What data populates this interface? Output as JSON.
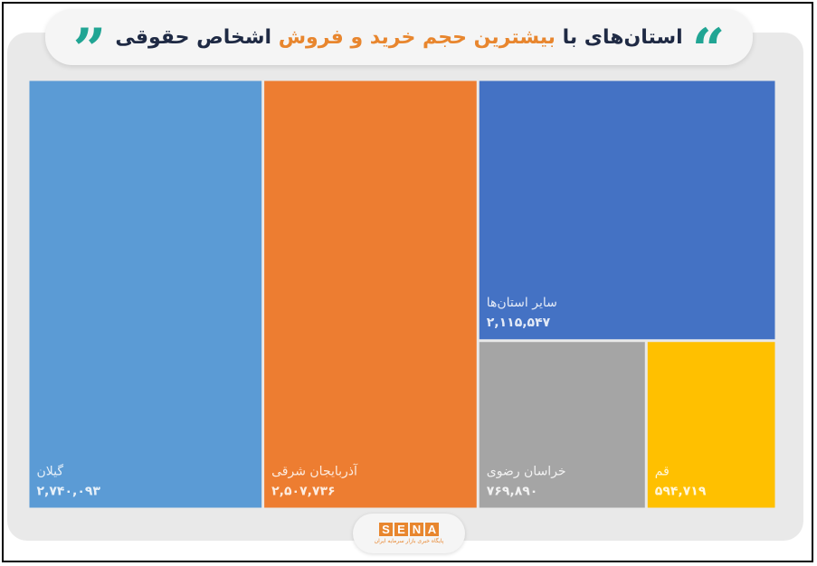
{
  "header": {
    "title_part1": "استان‌های با ",
    "title_highlight": "بیشترین حجم خرید و فروش",
    "title_part2": " اشخاص حقوقی",
    "quote_open": "“",
    "quote_close": "”"
  },
  "logo": {
    "letters": [
      "S",
      "E",
      "N",
      "A"
    ],
    "subtitle": "پایگاه خبری بازار سرمایه ایران"
  },
  "colors": {
    "accent_teal": "#21a594",
    "accent_orange": "#e8862e",
    "title_dark": "#1f2a44"
  },
  "chart_data": {
    "type": "treemap",
    "title": "استان‌های با بیشترین حجم خرید و فروش اشخاص حقوقی",
    "items": [
      {
        "label": "گیلان",
        "value": 2740093,
        "value_text": "۲,۷۴۰,۰۹۳",
        "color": "#5b9bd5"
      },
      {
        "label": "آذربایجان شرقی",
        "value": 2507736,
        "value_text": "۲,۵۰۷,۷۳۶",
        "color": "#ed7d31"
      },
      {
        "label": "سایر استان‌ها",
        "value": 2115547,
        "value_text": "۲,۱۱۵,۵۴۷",
        "color": "#4472c4"
      },
      {
        "label": "خراسان رضوی",
        "value": 769890,
        "value_text": "۷۶۹,۸۹۰",
        "color": "#a5a5a5"
      },
      {
        "label": "قم",
        "value": 594719,
        "value_text": "۵۹۴,۷۱۹",
        "color": "#ffc000"
      }
    ]
  }
}
